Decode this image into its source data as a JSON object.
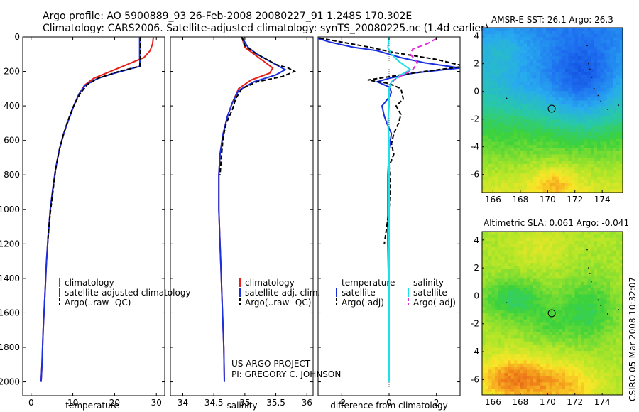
{
  "title": {
    "line1": "Argo profile: AO 5900889_93 26-Feb-2008 20080227_91 1.248S 170.302E",
    "line2": "Climatology: CARS2006. Satellite-adjusted climatology: synTS_20080225.nc (1.4d earlier)"
  },
  "credits": {
    "project": "US ARGO PROJECT",
    "pi": "PI: GREGORY C. JOHNSON",
    "stamp": "CSIRO 05-Mar-2008 10:32:07"
  },
  "colors": {
    "climatology": "#e8201a",
    "satellite": "#1a2fe0",
    "argo": "#000000",
    "sat_salinity": "#1ee0e8",
    "argo_salinity": "#e030d8"
  },
  "chart_data": [
    {
      "type": "line",
      "name": "temperature-profile",
      "xlabel": "temperature",
      "ylabel": "",
      "xlim": [
        -2,
        32
      ],
      "ylim": [
        2080,
        0
      ],
      "xticks": [
        0,
        10,
        20,
        30
      ],
      "yticks": [
        0,
        200,
        400,
        600,
        800,
        1000,
        1200,
        1400,
        1600,
        1800,
        2000
      ],
      "legend": [
        "climatology",
        "satellite-adjusted climatology",
        "Argo(..raw -QC)"
      ],
      "series": [
        {
          "name": "climatology",
          "color": "#e8201a",
          "dash": "",
          "points": [
            [
              29.3,
              0
            ],
            [
              29.1,
              40
            ],
            [
              28.5,
              80
            ],
            [
              27.0,
              120
            ],
            [
              23.0,
              160
            ],
            [
              19.0,
              200
            ],
            [
              15.0,
              240
            ],
            [
              12.8,
              280
            ],
            [
              11.5,
              330
            ],
            [
              10.2,
              400
            ],
            [
              9.0,
              480
            ],
            [
              7.8,
              560
            ],
            [
              6.8,
              650
            ],
            [
              5.9,
              760
            ],
            [
              5.2,
              880
            ],
            [
              4.6,
              1000
            ],
            [
              4.1,
              1150
            ],
            [
              3.7,
              1300
            ],
            [
              3.3,
              1500
            ],
            [
              2.9,
              1700
            ],
            [
              2.6,
              1900
            ],
            [
              2.4,
              2000
            ]
          ]
        },
        {
          "name": "satellite",
          "color": "#1a2fe0",
          "dash": "",
          "points": [
            [
              26.0,
              0
            ],
            [
              26.0,
              60
            ],
            [
              26.0,
              120
            ],
            [
              26.1,
              170
            ],
            [
              20.0,
              210
            ],
            [
              16.0,
              240
            ],
            [
              13.0,
              280
            ],
            [
              11.5,
              330
            ],
            [
              10.2,
              400
            ],
            [
              9.0,
              480
            ],
            [
              7.8,
              560
            ],
            [
              6.8,
              650
            ],
            [
              5.9,
              760
            ],
            [
              5.2,
              880
            ],
            [
              4.6,
              1000
            ],
            [
              4.1,
              1150
            ],
            [
              3.7,
              1300
            ],
            [
              3.3,
              1500
            ],
            [
              2.9,
              1700
            ],
            [
              2.6,
              1900
            ],
            [
              2.4,
              2000
            ]
          ]
        },
        {
          "name": "argo",
          "color": "#000000",
          "dash": "6,3",
          "points": [
            [
              26.2,
              0
            ],
            [
              26.2,
              60
            ],
            [
              26.2,
              120
            ],
            [
              26.0,
              170
            ],
            [
              21.0,
              200
            ],
            [
              16.0,
              240
            ],
            [
              13.5,
              275
            ],
            [
              11.7,
              330
            ],
            [
              10.0,
              410
            ],
            [
              8.6,
              500
            ],
            [
              7.6,
              580
            ],
            [
              6.6,
              670
            ],
            [
              5.8,
              780
            ],
            [
              5.2,
              900
            ],
            [
              4.6,
              1020
            ],
            [
              4.0,
              1180
            ]
          ]
        }
      ]
    },
    {
      "type": "line",
      "name": "salinity-profile",
      "xlabel": "salinity",
      "xlim": [
        33.8,
        36.1
      ],
      "ylim": [
        2080,
        0
      ],
      "xticks": [
        34,
        34.5,
        35,
        35.5,
        36
      ],
      "legend": [
        "climatology",
        "satellite adj. clim.",
        "Argo(..raw -QC)"
      ],
      "series": [
        {
          "name": "climatology",
          "color": "#e8201a",
          "dash": "",
          "points": [
            [
              34.95,
              0
            ],
            [
              35.0,
              60
            ],
            [
              35.15,
              100
            ],
            [
              35.3,
              140
            ],
            [
              35.45,
              180
            ],
            [
              35.4,
              210
            ],
            [
              35.1,
              250
            ],
            [
              34.9,
              300
            ],
            [
              34.8,
              380
            ],
            [
              34.72,
              460
            ],
            [
              34.65,
              560
            ],
            [
              34.6,
              680
            ],
            [
              34.58,
              800
            ],
            [
              34.58,
              1000
            ],
            [
              34.6,
              1200
            ],
            [
              34.62,
              1400
            ],
            [
              34.64,
              1600
            ],
            [
              34.66,
              1800
            ],
            [
              34.67,
              2000
            ]
          ]
        },
        {
          "name": "satellite",
          "color": "#1a2fe0",
          "dash": "",
          "points": [
            [
              34.95,
              0
            ],
            [
              35.05,
              60
            ],
            [
              35.2,
              100
            ],
            [
              35.4,
              140
            ],
            [
              35.55,
              170
            ],
            [
              35.65,
              190
            ],
            [
              35.5,
              220
            ],
            [
              35.15,
              260
            ],
            [
              34.9,
              310
            ],
            [
              34.8,
              380
            ],
            [
              34.72,
              460
            ],
            [
              34.65,
              560
            ],
            [
              34.6,
              680
            ],
            [
              34.58,
              800
            ],
            [
              34.58,
              1000
            ],
            [
              34.6,
              1200
            ],
            [
              34.62,
              1400
            ],
            [
              34.64,
              1600
            ],
            [
              34.66,
              1800
            ],
            [
              34.67,
              2000
            ]
          ]
        },
        {
          "name": "argo",
          "color": "#000000",
          "dash": "6,3",
          "points": [
            [
              34.95,
              0
            ],
            [
              35.0,
              50
            ],
            [
              35.15,
              90
            ],
            [
              35.35,
              130
            ],
            [
              35.5,
              160
            ],
            [
              35.7,
              180
            ],
            [
              35.8,
              200
            ],
            [
              35.6,
              230
            ],
            [
              35.2,
              260
            ],
            [
              34.95,
              300
            ],
            [
              34.85,
              360
            ],
            [
              34.8,
              420
            ],
            [
              34.7,
              500
            ],
            [
              34.65,
              580
            ],
            [
              34.62,
              700
            ],
            [
              34.6,
              800
            ]
          ]
        }
      ]
    },
    {
      "type": "line",
      "name": "difference-profile",
      "xlabel": "difference from climatology",
      "xlim": [
        -3,
        3
      ],
      "ylim": [
        2080,
        0
      ],
      "xticks": [
        -2,
        0,
        2
      ],
      "legend_header": [
        "temperature",
        "salinity"
      ],
      "legend_left": [
        "satellite",
        "Argo(-adj)"
      ],
      "legend_right": [
        "satellite",
        "Argo(-adj)"
      ],
      "series": [
        {
          "name": "temp-satellite",
          "color": "#1a2fe0",
          "dash": "",
          "points": [
            [
              -3.2,
              0
            ],
            [
              -2.5,
              30
            ],
            [
              -1.5,
              60
            ],
            [
              -0.5,
              80
            ],
            [
              0.0,
              100
            ],
            [
              0.5,
              120
            ],
            [
              1.5,
              150
            ],
            [
              3.0,
              180
            ],
            [
              1.0,
              210
            ],
            [
              0.0,
              240
            ],
            [
              -0.5,
              260
            ],
            [
              0.0,
              290
            ],
            [
              0.1,
              320
            ],
            [
              0.0,
              350
            ],
            [
              -0.3,
              400
            ],
            [
              -0.2,
              460
            ],
            [
              -0.1,
              500
            ],
            [
              0.1,
              560
            ],
            [
              0.0,
              650
            ],
            [
              -0.05,
              800
            ],
            [
              -0.05,
              1200
            ],
            [
              0.0,
              1600
            ],
            [
              0.0,
              2000
            ]
          ]
        },
        {
          "name": "temp-argo",
          "color": "#000000",
          "dash": "6,3",
          "points": [
            [
              -3.2,
              0
            ],
            [
              -2.0,
              30
            ],
            [
              -0.8,
              60
            ],
            [
              0.2,
              90
            ],
            [
              2.0,
              130
            ],
            [
              3.2,
              170
            ],
            [
              1.5,
              200
            ],
            [
              0.5,
              220
            ],
            [
              -0.9,
              250
            ],
            [
              0.0,
              270
            ],
            [
              0.5,
              300
            ],
            [
              0.6,
              360
            ],
            [
              0.3,
              400
            ],
            [
              0.5,
              450
            ],
            [
              0.4,
              500
            ],
            [
              0.2,
              560
            ],
            [
              0.1,
              620
            ],
            [
              0.2,
              680
            ],
            [
              0.0,
              750
            ],
            [
              0.05,
              850
            ],
            [
              0.0,
              1000
            ],
            [
              -0.1,
              1100
            ],
            [
              -0.2,
              1200
            ]
          ]
        },
        {
          "name": "sal-satellite",
          "color": "#1ee0e8",
          "dash": "",
          "points": [
            [
              0.0,
              0
            ],
            [
              -0.05,
              60
            ],
            [
              0.1,
              100
            ],
            [
              0.4,
              140
            ],
            [
              0.7,
              170
            ],
            [
              0.9,
              190
            ],
            [
              0.5,
              220
            ],
            [
              0.1,
              260
            ],
            [
              0.0,
              300
            ],
            [
              0.0,
              400
            ],
            [
              -0.05,
              500
            ],
            [
              0.0,
              600
            ],
            [
              0.0,
              800
            ],
            [
              0.0,
              1000
            ],
            [
              0.0,
              1200
            ],
            [
              0.0,
              1400
            ],
            [
              0.0,
              1600
            ],
            [
              0.0,
              1800
            ],
            [
              0.0,
              2000
            ]
          ]
        },
        {
          "name": "sal-argo",
          "color": "#e030d8",
          "dash": "7,4",
          "points": [
            [
              2.0,
              10
            ],
            [
              1.6,
              40
            ],
            [
              1.0,
              70
            ],
            [
              0.9,
              100
            ],
            [
              1.2,
              150
            ],
            [
              1.0,
              190
            ],
            [
              0.6,
              220
            ],
            [
              0.2,
              250
            ],
            [
              0.1,
              280
            ]
          ]
        }
      ]
    },
    {
      "type": "heatmap",
      "name": "sst-map",
      "title": "AMSR-E SST: 26.1 Argo: 26.3",
      "xlim": [
        165.2,
        175.5
      ],
      "ylim": [
        -7.3,
        4.6
      ],
      "xticks": [
        166,
        168,
        170,
        172,
        174
      ],
      "yticks": [
        4,
        2,
        0,
        -2,
        -4,
        -6
      ],
      "argo_position": [
        170.302,
        -1.248
      ]
    },
    {
      "type": "heatmap",
      "name": "sla-map",
      "title": "Altimetric SLA: 0.061 Argo: -0.041",
      "xlim": [
        165.2,
        175.5
      ],
      "ylim": [
        -7.1,
        4.6
      ],
      "xticks": [
        166,
        168,
        170,
        172,
        174
      ],
      "yticks": [
        4,
        2,
        0,
        -2,
        -4,
        -6
      ],
      "argo_position": [
        170.302,
        -1.248
      ]
    }
  ]
}
